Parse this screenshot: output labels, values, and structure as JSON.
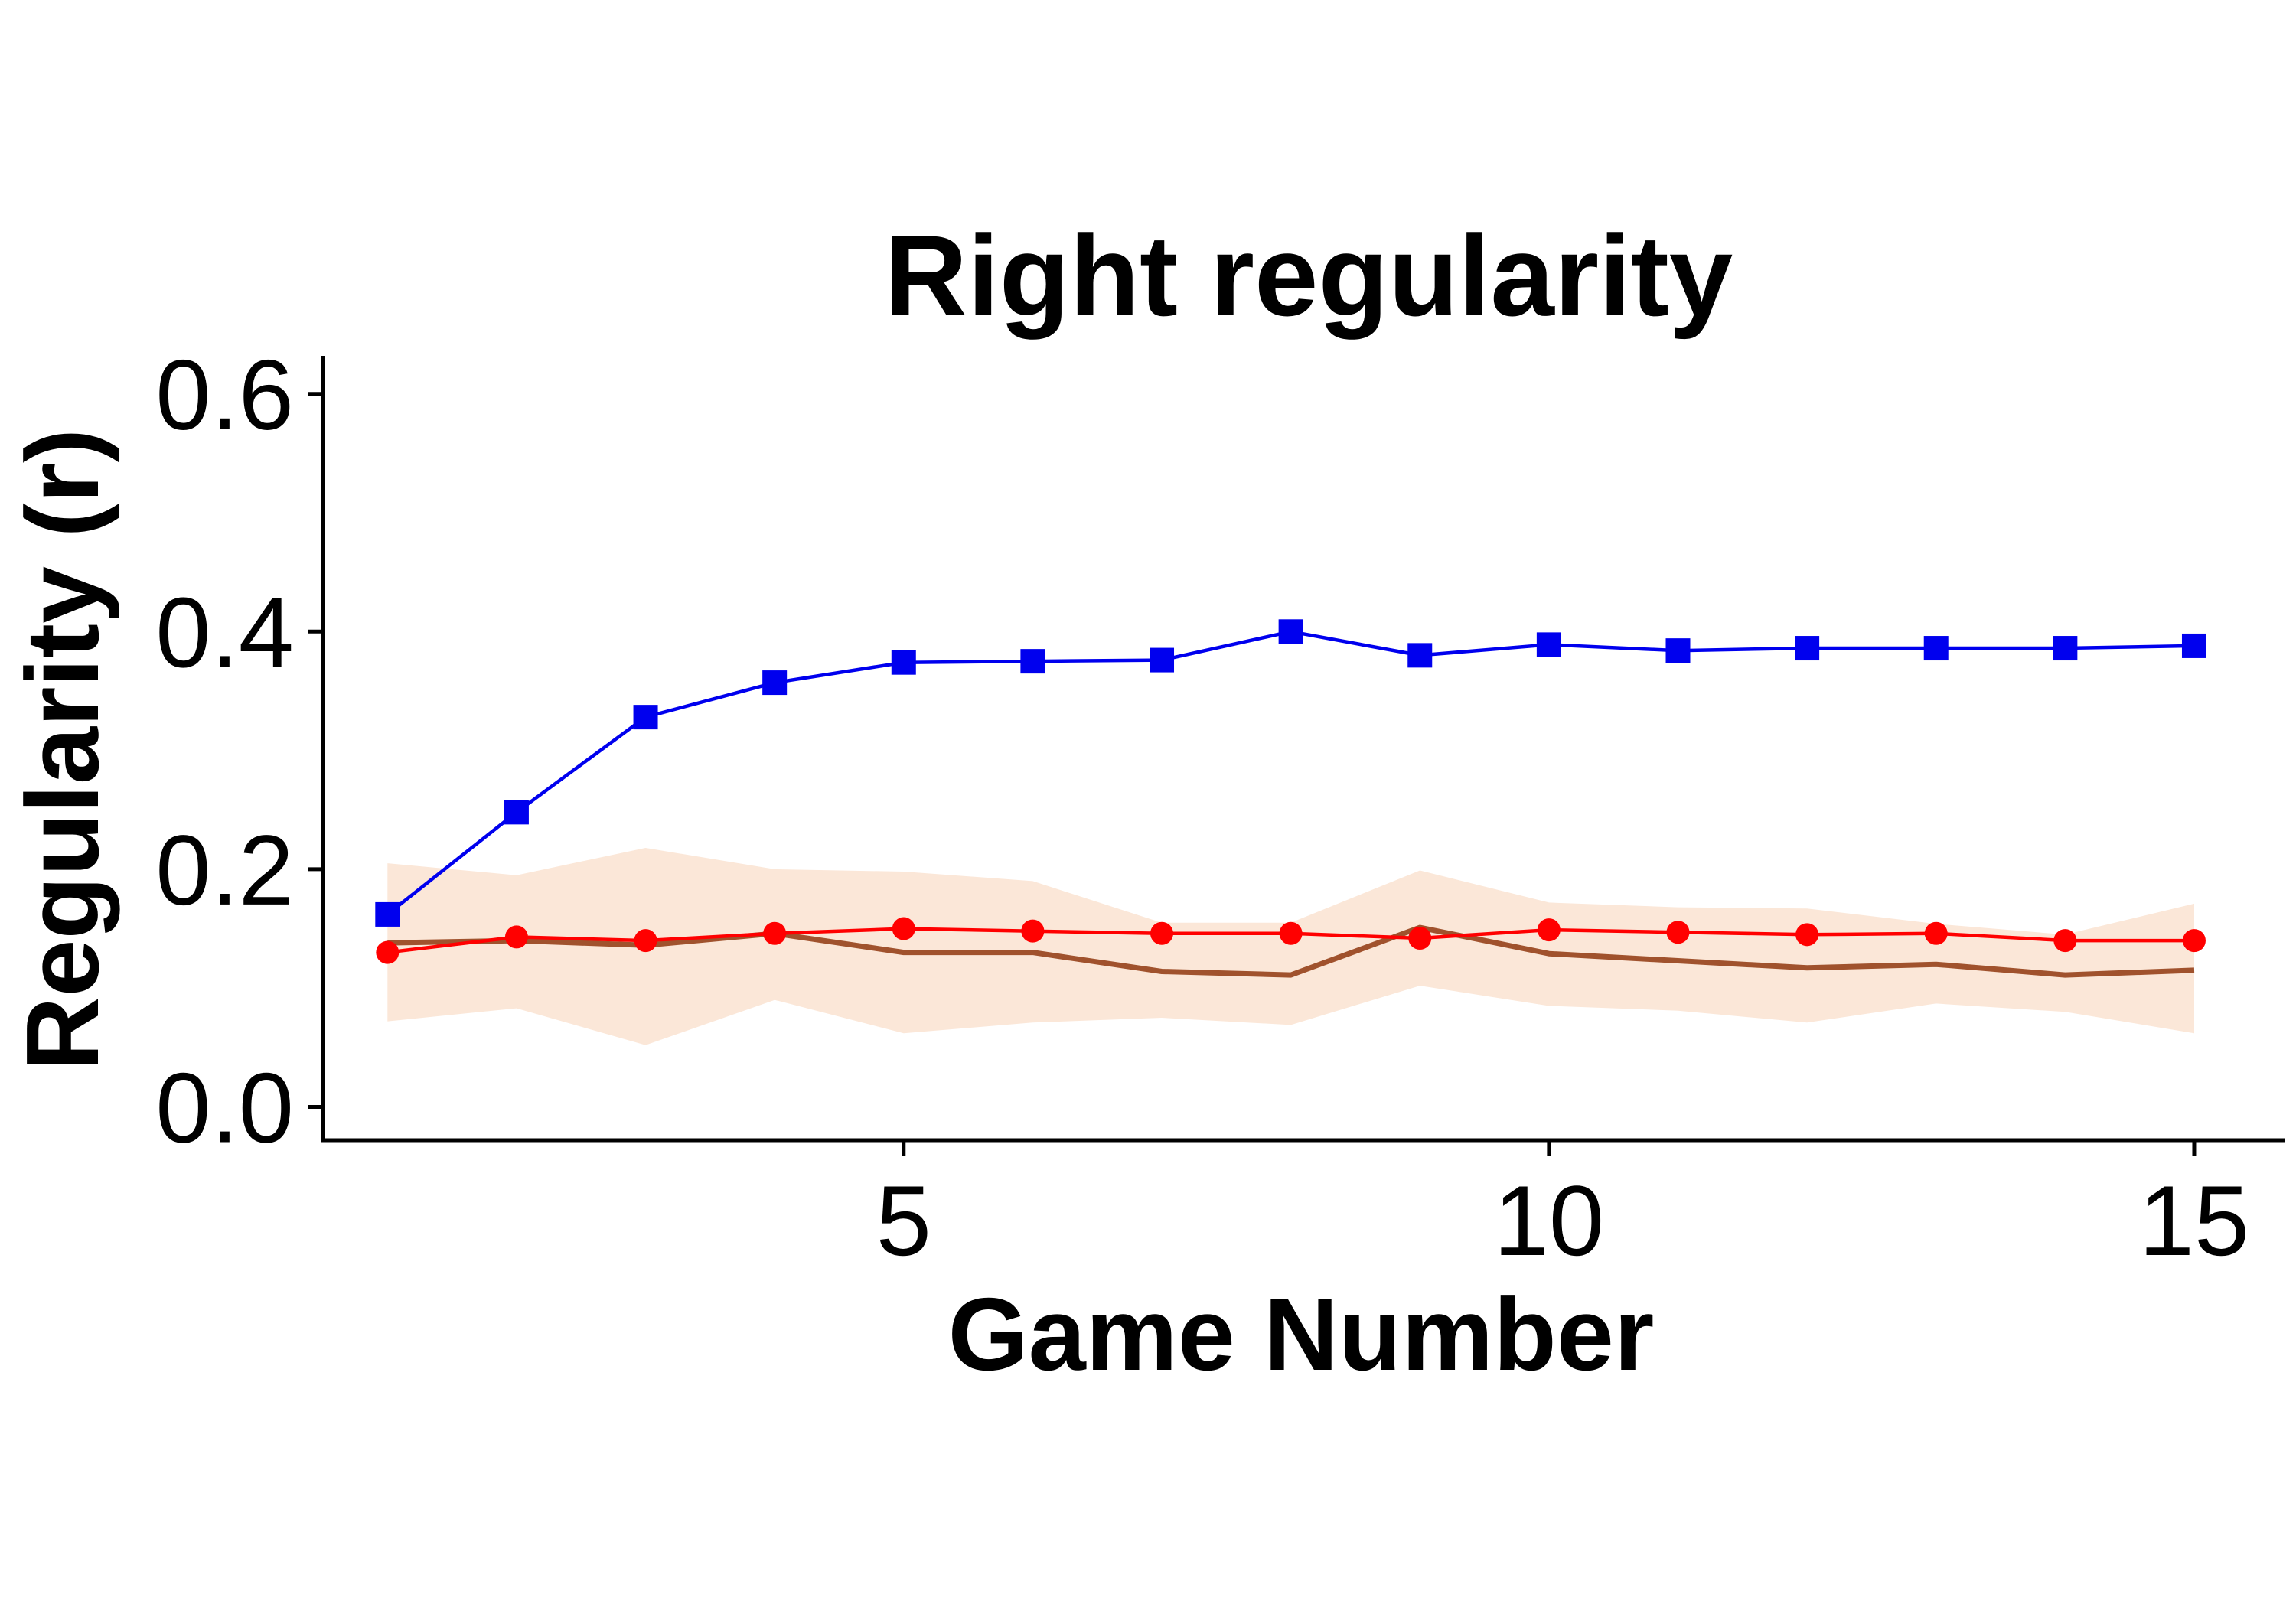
{
  "chart_data": {
    "type": "line",
    "title": "Right regularity",
    "xlabel": "Game Number",
    "ylabel": "Regularity (r)",
    "xlim": [
      0.5,
      15.7
    ],
    "ylim": [
      -0.028,
      0.632
    ],
    "xticks": [
      5,
      10,
      15
    ],
    "yticks": [
      0.0,
      0.2,
      0.4,
      0.6
    ],
    "ytick_labels": [
      "0.0",
      "0.2",
      "0.4",
      "0.6"
    ],
    "grid": false,
    "legend": "none",
    "x": [
      1,
      2,
      3,
      4,
      5,
      6,
      7,
      8,
      9,
      10,
      11,
      12,
      13,
      14,
      15
    ],
    "series": [
      {
        "values": [
          0.162,
          0.248,
          0.328,
          0.357,
          0.374,
          0.375,
          0.376,
          0.4,
          0.38,
          0.389,
          0.384,
          0.386,
          0.386,
          0.386,
          0.388
        ],
        "color": "#0000ee",
        "marker": "square"
      },
      {
        "values": [
          0.13,
          0.143,
          0.14,
          0.146,
          0.15,
          0.148,
          0.146,
          0.146,
          0.142,
          0.149,
          0.147,
          0.145,
          0.146,
          0.14,
          0.14
        ],
        "color": "#ff0000",
        "marker": "circle"
      },
      {
        "values": [
          0.138,
          0.14,
          0.136,
          0.146,
          0.13,
          0.13,
          0.114,
          0.111,
          0.151,
          0.129,
          0.123,
          0.117,
          0.12,
          0.111,
          0.115
        ],
        "color": "#a0522d",
        "marker": "none"
      }
    ],
    "band": {
      "color": "#fbe7d8",
      "upper": [
        0.205,
        0.195,
        0.218,
        0.2,
        0.198,
        0.19,
        0.155,
        0.155,
        0.199,
        0.172,
        0.168,
        0.167,
        0.154,
        0.145,
        0.171
      ],
      "lower": [
        0.072,
        0.083,
        0.052,
        0.09,
        0.062,
        0.071,
        0.075,
        0.069,
        0.102,
        0.085,
        0.081,
        0.071,
        0.087,
        0.08,
        0.062
      ]
    }
  }
}
